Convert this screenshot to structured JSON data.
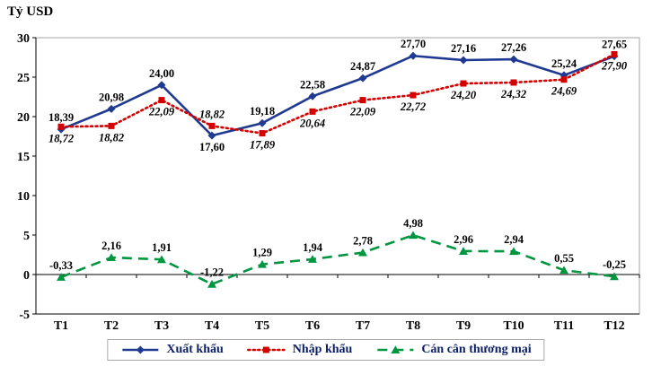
{
  "chart_data": {
    "type": "line",
    "title": "Tỷ USD",
    "categories": [
      "T1",
      "T2",
      "T3",
      "T4",
      "T5",
      "T6",
      "T7",
      "T8",
      "T9",
      "T10",
      "T11",
      "T12"
    ],
    "ylim": [
      -5,
      30
    ],
    "yticks": [
      -5,
      0,
      5,
      10,
      15,
      20,
      25,
      30
    ],
    "grid": false,
    "legend_position": "bottom",
    "legend_text_color": "#0b1f66",
    "axis_text_color": "#000000",
    "series": [
      {
        "name": "Xuất khẩu",
        "color": "#1f3a90",
        "line_style": "solid",
        "marker": "diamond",
        "values": [
          18.39,
          20.98,
          24.0,
          17.6,
          19.18,
          22.58,
          24.87,
          27.7,
          27.16,
          27.26,
          25.24,
          27.65
        ],
        "labels": [
          "18,39",
          "20,98",
          "24,00",
          "17,60",
          "19,18",
          "22,58",
          "24,87",
          "27,70",
          "27,16",
          "27,26",
          "25,24",
          "27,65"
        ],
        "label_font_style": "bold",
        "label_positions": [
          "above",
          "above",
          "above",
          "below",
          "above",
          "above",
          "above",
          "above",
          "above",
          "above",
          "above",
          "above"
        ]
      },
      {
        "name": "Nhập khẩu",
        "color": "#d40000",
        "line_style": "dotted",
        "marker": "square",
        "values": [
          18.72,
          18.82,
          22.09,
          18.82,
          17.89,
          20.64,
          22.09,
          22.72,
          24.2,
          24.32,
          24.69,
          27.9
        ],
        "labels": [
          "18,72",
          "18,82",
          "22,09",
          "18,82",
          "17,89",
          "20,64",
          "22,09",
          "22,72",
          "24,20",
          "24,32",
          "24,69",
          "27,90"
        ],
        "label_font_style": "bold-italic",
        "label_positions": [
          "below",
          "below",
          "below",
          "above",
          "below",
          "below",
          "below",
          "below",
          "below",
          "below",
          "below",
          "below"
        ]
      },
      {
        "name": "Cán cân thương mại",
        "color": "#009640",
        "line_style": "dashed",
        "marker": "triangle",
        "values": [
          -0.33,
          2.16,
          1.91,
          -1.22,
          1.29,
          1.94,
          2.78,
          4.98,
          2.96,
          2.94,
          0.55,
          -0.25
        ],
        "labels": [
          "-0,33",
          "2,16",
          "1,91",
          "-1,22",
          "1,29",
          "1,94",
          "2,78",
          "4,98",
          "2,96",
          "2,94",
          "0,55",
          "-0,25"
        ],
        "label_font_style": "bold",
        "label_positions": [
          "above",
          "above",
          "above",
          "above",
          "above",
          "above",
          "above",
          "above",
          "above",
          "above",
          "above",
          "above"
        ]
      }
    ]
  }
}
